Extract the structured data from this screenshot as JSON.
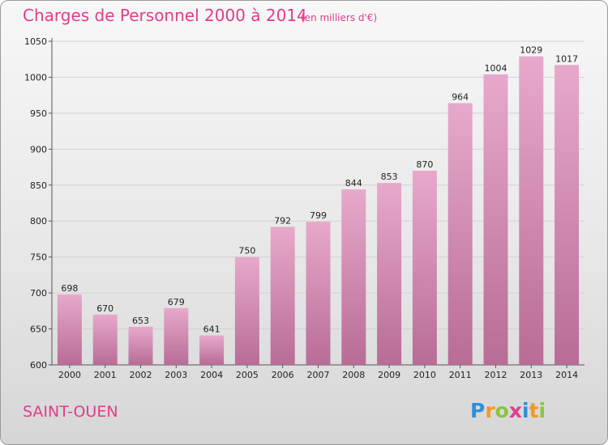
{
  "chart_data": {
    "type": "bar",
    "title": "Charges de Personnel 2000 à 2014",
    "subtitle": "(en milliers d'€)",
    "categories": [
      "2000",
      "2001",
      "2002",
      "2003",
      "2004",
      "2005",
      "2006",
      "2007",
      "2008",
      "2009",
      "2010",
      "2011",
      "2012",
      "2013",
      "2014"
    ],
    "values": [
      698,
      670,
      653,
      679,
      641,
      750,
      792,
      799,
      844,
      853,
      870,
      964,
      1004,
      1029,
      1017
    ],
    "ylim": [
      600,
      1050
    ],
    "yticks": [
      600,
      650,
      700,
      750,
      800,
      850,
      900,
      950,
      1000,
      1050
    ],
    "grid": true,
    "bar_color": "#c8719f",
    "bar_color_light": "#e7a9cb",
    "title_color": "#e23c8c"
  },
  "footer": {
    "commune": "SAINT-OUEN",
    "logo_text": "Proxiti",
    "logo_letters": [
      {
        "ch": "P",
        "color": "#2f8fd8"
      },
      {
        "ch": "r",
        "color": "#f39a1c"
      },
      {
        "ch": "o",
        "color": "#8bc53f"
      },
      {
        "ch": "x",
        "color": "#e23c8c"
      },
      {
        "ch": "i",
        "color": "#2f8fd8"
      },
      {
        "ch": "t",
        "color": "#f39a1c"
      },
      {
        "ch": "i",
        "color": "#8bc53f"
      }
    ]
  }
}
